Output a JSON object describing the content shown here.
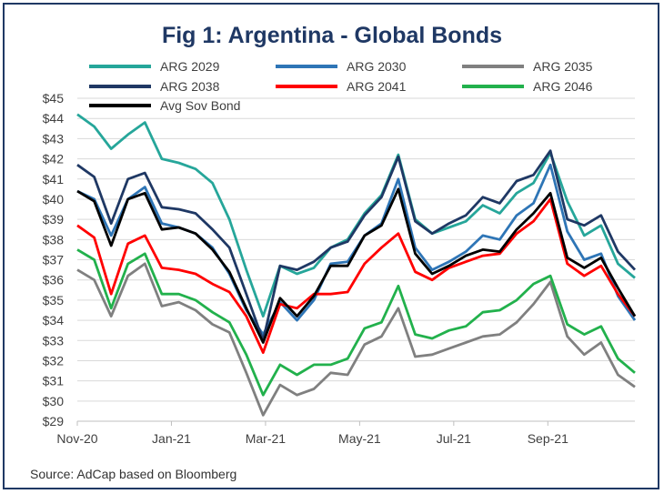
{
  "title": "Fig 1: Argentina - Global Bonds",
  "source": "Source: AdCap based on Bloomberg",
  "chart_data": {
    "type": "line",
    "title": "Fig 1: Argentina - Global Bonds",
    "xlabel": "",
    "ylabel": "",
    "x_ticks": [
      "Nov-20",
      "Jan-21",
      "Mar-21",
      "May-21",
      "Jul-21",
      "Sep-21"
    ],
    "y_ticks": [
      "$29",
      "$30",
      "$31",
      "$32",
      "$33",
      "$34",
      "$35",
      "$36",
      "$37",
      "$38",
      "$39",
      "$40",
      "$41",
      "$42",
      "$43",
      "$44",
      "$45"
    ],
    "ylim": [
      29,
      45
    ],
    "grid": "horizontal",
    "legend_position": "top",
    "x": [
      "Nov-20",
      "Nov-20",
      "Dec-20",
      "Dec-20",
      "Dec-20",
      "Jan-21",
      "Jan-21",
      "Jan-21",
      "Feb-21",
      "Feb-21",
      "Feb-21",
      "Mar-21",
      "Mar-21",
      "Mar-21",
      "Apr-21",
      "Apr-21",
      "Apr-21",
      "May-21",
      "May-21",
      "May-21",
      "Jun-21",
      "Jun-21",
      "Jun-21",
      "Jul-21",
      "Jul-21",
      "Jul-21",
      "Aug-21",
      "Aug-21",
      "Aug-21",
      "Sep-21",
      "Sep-21",
      "Sep-21",
      "Oct-21",
      "Oct-21"
    ],
    "series": [
      {
        "name": "ARG 2029",
        "color": "#26a69a",
        "values": [
          44.2,
          43.6,
          42.5,
          43.2,
          43.8,
          42.0,
          41.8,
          41.5,
          40.8,
          39.0,
          36.5,
          34.2,
          36.7,
          36.3,
          36.6,
          37.6,
          38.0,
          39.3,
          40.2,
          42.2,
          39.0,
          38.3,
          38.6,
          38.9,
          39.7,
          39.3,
          40.3,
          40.8,
          42.3,
          39.9,
          38.2,
          38.7,
          36.8,
          36.1
        ]
      },
      {
        "name": "ARG 2030",
        "color": "#2e75b6",
        "values": [
          40.4,
          40.0,
          38.2,
          40.0,
          40.6,
          38.8,
          38.6,
          38.3,
          37.6,
          36.3,
          34.5,
          33.3,
          34.9,
          34.0,
          35.0,
          36.8,
          36.9,
          38.2,
          38.8,
          41.0,
          37.6,
          36.5,
          36.9,
          37.4,
          38.2,
          38.0,
          39.2,
          39.8,
          41.7,
          38.4,
          37.0,
          37.3,
          35.2,
          34.0
        ]
      },
      {
        "name": "ARG 2035",
        "color": "#808080",
        "values": [
          36.5,
          36.0,
          34.2,
          36.2,
          36.8,
          34.7,
          34.9,
          34.5,
          33.8,
          33.4,
          31.4,
          29.3,
          30.8,
          30.3,
          30.6,
          31.4,
          31.3,
          32.8,
          33.2,
          34.6,
          32.2,
          32.3,
          32.6,
          32.9,
          33.2,
          33.3,
          33.9,
          34.8,
          35.9,
          33.2,
          32.3,
          32.9,
          31.3,
          30.7
        ]
      },
      {
        "name": "ARG 2038",
        "color": "#1f3864",
        "values": [
          41.7,
          41.1,
          38.8,
          41.0,
          41.3,
          39.6,
          39.5,
          39.3,
          38.5,
          37.6,
          35.3,
          33.0,
          36.7,
          36.5,
          36.9,
          37.6,
          37.9,
          39.2,
          40.1,
          42.1,
          38.9,
          38.3,
          38.8,
          39.2,
          40.1,
          39.8,
          40.9,
          41.2,
          42.4,
          39.0,
          38.7,
          39.2,
          37.4,
          36.5
        ]
      },
      {
        "name": "ARG 2041",
        "color": "#ff0000",
        "values": [
          38.7,
          38.1,
          35.3,
          37.8,
          38.2,
          36.6,
          36.5,
          36.3,
          35.8,
          35.4,
          34.2,
          32.4,
          34.8,
          34.6,
          35.3,
          35.3,
          35.4,
          36.8,
          37.6,
          38.3,
          36.4,
          36.0,
          36.6,
          36.9,
          37.2,
          37.3,
          38.3,
          38.9,
          40.0,
          36.8,
          36.2,
          36.7,
          35.3,
          34.2
        ]
      },
      {
        "name": "ARG 2046",
        "color": "#22b14c",
        "values": [
          37.5,
          37.0,
          34.6,
          36.8,
          37.3,
          35.3,
          35.3,
          35.0,
          34.4,
          33.9,
          32.3,
          30.3,
          31.8,
          31.3,
          31.8,
          31.8,
          32.1,
          33.6,
          33.9,
          35.7,
          33.3,
          33.1,
          33.5,
          33.7,
          34.4,
          34.5,
          35.0,
          35.8,
          36.2,
          33.8,
          33.3,
          33.7,
          32.1,
          31.4
        ]
      },
      {
        "name": "Avg Sov Bond",
        "color": "#000000",
        "values": [
          40.4,
          39.9,
          37.7,
          40.0,
          40.3,
          38.5,
          38.6,
          38.3,
          37.5,
          36.4,
          34.6,
          32.9,
          35.1,
          34.2,
          35.2,
          36.7,
          36.7,
          38.2,
          38.7,
          40.5,
          37.3,
          36.3,
          36.7,
          37.2,
          37.5,
          37.4,
          38.5,
          39.3,
          40.3,
          37.1,
          36.6,
          37.1,
          35.6,
          34.2
        ]
      }
    ]
  }
}
